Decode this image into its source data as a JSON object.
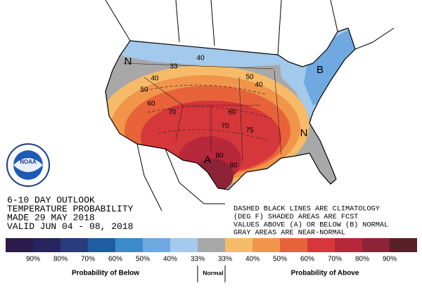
{
  "outlook": {
    "lines": [
      "6-10 DAY OUTLOOK",
      "TEMPERATURE PROBABILITY",
      "MADE  29 MAY 2018",
      "VALID  JUN 04 - 08, 2018"
    ]
  },
  "note": {
    "lines": [
      "DASHED BLACK LINES ARE CLIMATOLOGY",
      "(DEG F) SHADED AREAS ARE FCST",
      "VALUES ABOVE (A) OR BELOW (B) NORMAL",
      "GRAY AREAS ARE NEAR-NORMAL"
    ]
  },
  "map_labels": [
    "N",
    "40",
    "33",
    "40",
    "50",
    "60",
    "70",
    "50",
    "40",
    "60",
    "70",
    "75",
    "80",
    "80",
    "A",
    "B",
    "N"
  ],
  "legend": {
    "colors": [
      "#2b1a4c",
      "#27255f",
      "#283c7c",
      "#1f5ca2",
      "#3b8ac9",
      "#6fa9e0",
      "#a3c9ec",
      "#a8a8a8",
      "#f6bb69",
      "#f1954b",
      "#e8633a",
      "#d6373a",
      "#b7283b",
      "#8d2337",
      "#5a1f28"
    ],
    "labels": [
      "90%",
      "80%",
      "70%",
      "60%",
      "50%",
      "40%",
      "33%",
      "33%",
      "40%",
      "50%",
      "60%",
      "70%",
      "80%",
      "90%"
    ],
    "groups": [
      "Probability of Below",
      "Normal",
      "Probability of Above"
    ]
  }
}
